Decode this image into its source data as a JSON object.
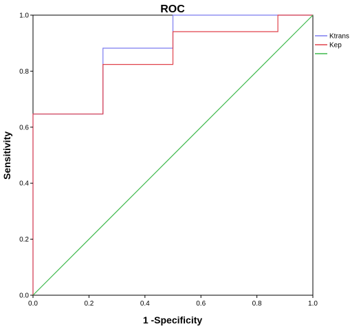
{
  "chart_data": {
    "type": "line",
    "title": "ROC",
    "xlabel": "1 -Specificity",
    "ylabel": "Sensitivity",
    "xlim": [
      0,
      1
    ],
    "ylim": [
      0,
      1
    ],
    "x_ticks": [
      "0.0",
      "0.2",
      "0.4",
      "0.6",
      "0.8",
      "1.0"
    ],
    "y_ticks": [
      "0.0",
      "0.2",
      "0.4",
      "0.6",
      "0.8",
      "1.0"
    ],
    "grid": false,
    "legend_position": "right",
    "series": [
      {
        "name": "Ktrans",
        "color": "#7b7bef",
        "points": [
          [
            0,
            0
          ],
          [
            0,
            0.647
          ],
          [
            0.25,
            0.647
          ],
          [
            0.25,
            0.882
          ],
          [
            0.5,
            0.882
          ],
          [
            0.5,
            1.0
          ],
          [
            1.0,
            1.0
          ]
        ]
      },
      {
        "name": "Kep",
        "color": "#e0414a",
        "points": [
          [
            0,
            0
          ],
          [
            0,
            0.647
          ],
          [
            0.25,
            0.647
          ],
          [
            0.25,
            0.824
          ],
          [
            0.5,
            0.824
          ],
          [
            0.5,
            0.941
          ],
          [
            0.875,
            0.941
          ],
          [
            0.875,
            1.0
          ],
          [
            1.0,
            1.0
          ]
        ]
      },
      {
        "name": "",
        "color": "#3cb84a",
        "points": [
          [
            0,
            0
          ],
          [
            1,
            1
          ]
        ]
      }
    ]
  }
}
